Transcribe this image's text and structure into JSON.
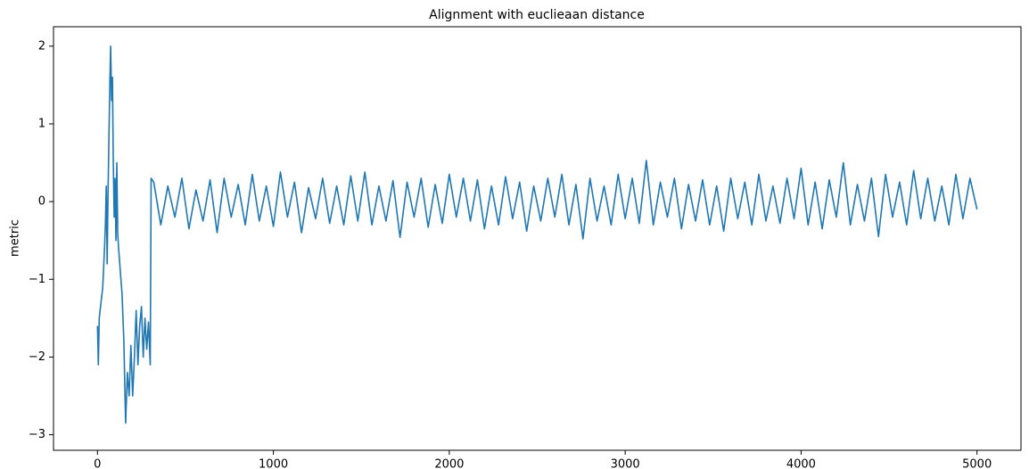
{
  "chart_data": {
    "type": "line",
    "title": "Alignment with euclieaan distance",
    "ylabel": "metric",
    "color": "#1f77b4",
    "x": [
      0,
      5,
      10,
      20,
      30,
      40,
      45,
      50,
      55,
      60,
      65,
      70,
      75,
      80,
      85,
      90,
      95,
      100,
      105,
      110,
      115,
      120,
      130,
      140,
      150,
      160,
      170,
      180,
      190,
      200,
      210,
      220,
      230,
      240,
      250,
      260,
      270,
      280,
      290,
      300,
      305,
      320,
      360,
      400,
      440,
      480,
      520,
      560,
      600,
      640,
      680,
      720,
      760,
      800,
      840,
      880,
      920,
      960,
      1000,
      1040,
      1080,
      1120,
      1160,
      1200,
      1240,
      1280,
      1320,
      1360,
      1400,
      1440,
      1480,
      1520,
      1560,
      1600,
      1640,
      1680,
      1720,
      1760,
      1800,
      1840,
      1880,
      1920,
      1960,
      2000,
      2040,
      2080,
      2120,
      2160,
      2200,
      2240,
      2280,
      2320,
      2360,
      2400,
      2440,
      2480,
      2520,
      2560,
      2600,
      2640,
      2680,
      2720,
      2760,
      2800,
      2840,
      2880,
      2920,
      2960,
      3000,
      3040,
      3080,
      3120,
      3160,
      3200,
      3240,
      3280,
      3320,
      3360,
      3400,
      3440,
      3480,
      3520,
      3560,
      3600,
      3640,
      3680,
      3720,
      3760,
      3800,
      3840,
      3880,
      3920,
      3960,
      4000,
      4040,
      4080,
      4120,
      4160,
      4200,
      4240,
      4280,
      4320,
      4360,
      4400,
      4440,
      4480,
      4520,
      4560,
      4600,
      4640,
      4680,
      4720,
      4760,
      4800,
      4840,
      4880,
      4920,
      4960,
      5000
    ],
    "values": [
      -1.6,
      -2.1,
      -1.5,
      -1.3,
      -1.1,
      -0.6,
      -0.3,
      0.2,
      -0.8,
      0.1,
      0.8,
      1.5,
      2.0,
      1.3,
      1.6,
      0.5,
      -0.2,
      0.3,
      -0.5,
      0.5,
      -0.4,
      -0.6,
      -0.9,
      -1.2,
      -1.8,
      -2.85,
      -2.2,
      -2.5,
      -1.85,
      -2.5,
      -2.0,
      -1.4,
      -2.1,
      -1.6,
      -1.35,
      -2.0,
      -1.5,
      -1.9,
      -1.55,
      -2.1,
      0.3,
      0.25,
      -0.3,
      0.2,
      -0.2,
      0.3,
      -0.35,
      0.15,
      -0.25,
      0.28,
      -0.4,
      0.3,
      -0.2,
      0.22,
      -0.3,
      0.35,
      -0.25,
      0.2,
      -0.32,
      0.38,
      -0.2,
      0.25,
      -0.4,
      0.18,
      -0.22,
      0.3,
      -0.28,
      0.2,
      -0.3,
      0.33,
      -0.25,
      0.38,
      -0.3,
      0.2,
      -0.25,
      0.27,
      -0.46,
      0.25,
      -0.2,
      0.3,
      -0.33,
      0.22,
      -0.28,
      0.35,
      -0.2,
      0.3,
      -0.25,
      0.28,
      -0.35,
      0.2,
      -0.3,
      0.32,
      -0.22,
      0.25,
      -0.38,
      0.2,
      -0.25,
      0.3,
      -0.2,
      0.35,
      -0.3,
      0.22,
      -0.48,
      0.3,
      -0.25,
      0.2,
      -0.3,
      0.35,
      -0.22,
      0.3,
      -0.28,
      0.53,
      -0.3,
      0.25,
      -0.2,
      0.3,
      -0.35,
      0.22,
      -0.25,
      0.28,
      -0.3,
      0.2,
      -0.38,
      0.3,
      -0.22,
      0.25,
      -0.3,
      0.35,
      -0.25,
      0.2,
      -0.28,
      0.3,
      -0.22,
      0.43,
      -0.3,
      0.25,
      -0.35,
      0.28,
      -0.2,
      0.5,
      -0.3,
      0.22,
      -0.25,
      0.3,
      -0.45,
      0.35,
      -0.2,
      0.25,
      -0.3,
      0.4,
      -0.22,
      0.3,
      -0.25,
      0.2,
      -0.3,
      0.35,
      -0.22,
      0.3,
      -0.1
    ],
    "xlim": [
      -250,
      5250
    ],
    "xticks": [
      0,
      1000,
      2000,
      3000,
      4000,
      5000
    ],
    "ylim": [
      -3.2,
      2.25
    ],
    "yticks": [
      {
        "value": -3,
        "label": "−3"
      },
      {
        "value": -2,
        "label": "−2"
      },
      {
        "value": -1,
        "label": "−1"
      },
      0,
      1,
      2
    ],
    "grid": false
  }
}
